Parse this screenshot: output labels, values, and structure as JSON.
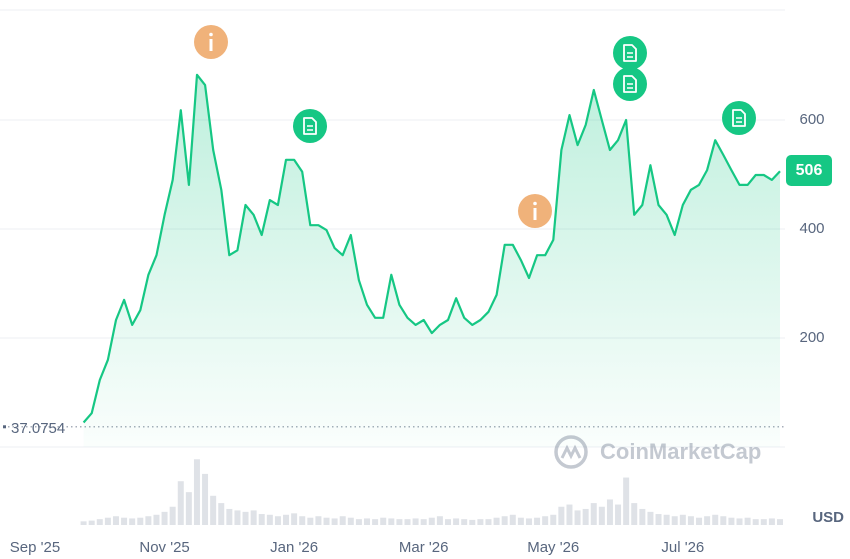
{
  "chart_data": {
    "type": "line",
    "categories": [
      "Sep '25",
      null,
      null,
      null,
      null,
      null,
      null,
      null,
      null,
      null,
      null,
      null,
      null,
      null,
      null,
      null,
      "Nov '25",
      null,
      null,
      null,
      null,
      null,
      null,
      null,
      null,
      null,
      null,
      null,
      null,
      null,
      null,
      null,
      "Jan '26",
      null,
      null,
      null,
      null,
      null,
      null,
      null,
      null,
      null,
      null,
      null,
      null,
      null,
      null,
      null,
      "Mar '26",
      null,
      null,
      null,
      null,
      null,
      null,
      null,
      null,
      null,
      null,
      null,
      null,
      null,
      null,
      null,
      "May '26",
      null,
      null,
      null,
      null,
      null,
      null,
      null,
      null,
      null,
      null,
      null,
      null,
      null,
      null,
      null,
      "Jul '26",
      null,
      null,
      null,
      null,
      null,
      null,
      null,
      null,
      null,
      null,
      null,
      null
    ],
    "values": [
      null,
      null,
      null,
      null,
      null,
      null,
      45,
      62,
      123,
      160,
      233,
      270,
      224,
      251,
      316,
      352,
      426,
      490,
      618,
      481,
      683,
      664,
      545,
      472,
      352,
      361,
      444,
      426,
      389,
      453,
      444,
      527,
      527,
      505,
      407,
      407,
      398,
      365,
      352,
      389,
      306,
      261,
      237,
      237,
      316,
      261,
      237,
      224,
      233,
      209,
      224,
      233,
      273,
      237,
      224,
      233,
      248,
      279,
      371,
      371,
      343,
      310,
      352,
      352,
      380,
      545,
      609,
      554,
      591,
      655,
      600,
      545,
      563,
      600,
      426,
      444,
      517,
      444,
      426,
      389,
      444,
      472,
      481,
      508,
      563,
      536,
      508,
      481,
      481,
      499,
      499,
      490,
      506
    ],
    "color": "#16c784",
    "ylim": [
      0,
      800
    ],
    "yticks": [
      200,
      400,
      600
    ],
    "grid": true,
    "reference_line": 37.0754,
    "current_value": 506,
    "unit": "USD",
    "watermark": "CoinMarketCap",
    "volume": {
      "values": [
        null,
        null,
        null,
        null,
        null,
        null,
        5,
        6,
        8,
        10,
        12,
        10,
        9,
        10,
        12,
        14,
        18,
        25,
        60,
        45,
        90,
        70,
        40,
        30,
        22,
        20,
        18,
        20,
        15,
        14,
        12,
        14,
        16,
        12,
        10,
        12,
        10,
        9,
        12,
        10,
        8,
        9,
        8,
        10,
        9,
        8,
        8,
        9,
        8,
        10,
        12,
        8,
        9,
        8,
        7,
        8,
        8,
        10,
        12,
        14,
        10,
        9,
        10,
        12,
        14,
        25,
        28,
        20,
        22,
        30,
        25,
        35,
        28,
        65,
        30,
        22,
        18,
        15,
        14,
        12,
        14,
        12,
        10,
        12,
        14,
        12,
        10,
        9,
        10,
        8,
        8,
        9,
        8
      ],
      "color": "#dfe2e7",
      "ylim": [
        0,
        100
      ]
    }
  }
}
